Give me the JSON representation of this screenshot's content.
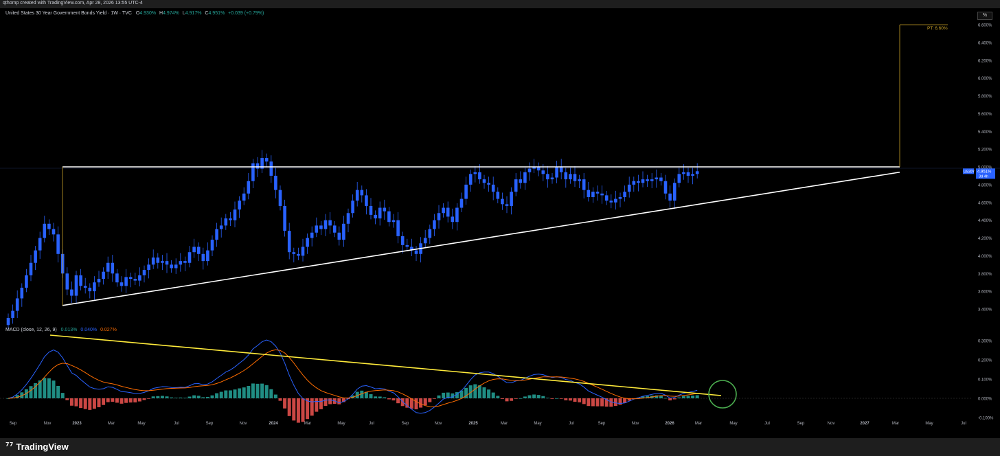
{
  "header": {
    "attribution": "qthomp created with TradingView.com, Apr 28, 2026 13:55 UTC-4"
  },
  "footer": {
    "brand": "TradingView",
    "logo_icon": "tradingview-logo-icon"
  },
  "scale_button": "%",
  "colors": {
    "bull": "#2962ff",
    "bear": "#2962ff",
    "price_line": "#2962ff",
    "trendline": "#ffffff",
    "target": "#c9a227",
    "macd": "#2962ff",
    "signal": "#ff6d00",
    "hist_pos": "#26a69a",
    "hist_neg": "#ef5350",
    "macd_trend": "#ffeb3b",
    "circle": "#4caf50"
  },
  "chart_data": [
    {
      "type": "candlestick",
      "legend": {
        "symbol": "United States 30 Year Government Bonds Yield · 1W · TVC",
        "o_label": "O",
        "o": "4.930%",
        "h_label": "H",
        "h": "4.974%",
        "l_label": "L",
        "l": "4.917%",
        "c_label": "C",
        "c": "4.951%",
        "chg": "+0.039 (+0.79%)"
      },
      "price_tag": {
        "ticker": "US30Y",
        "value": "4.951%",
        "countdown": "3d 4h"
      },
      "target_label": "PT: 6.60%",
      "y_ticks": [
        "6.600%",
        "6.400%",
        "6.200%",
        "6.000%",
        "5.800%",
        "5.600%",
        "5.400%",
        "5.200%",
        "5.000%",
        "4.800%",
        "4.600%",
        "4.400%",
        "4.200%",
        "4.000%",
        "3.800%",
        "3.600%",
        "3.400%"
      ],
      "x_ticks": [
        "Sep",
        "Nov",
        "2023",
        "Mar",
        "May",
        "Jul",
        "Sep",
        "Nov",
        "2024",
        "Mar",
        "May",
        "Jul",
        "Sep",
        "Nov",
        "2025",
        "Mar",
        "May",
        "Jul",
        "Sep",
        "Nov",
        "2026",
        "Mar",
        "May",
        "Jul",
        "Sep",
        "Nov",
        "2027",
        "Mar",
        "May",
        "Jul"
      ],
      "closes_weekly": [
        3.3,
        3.38,
        3.52,
        3.64,
        3.78,
        3.92,
        4.06,
        4.2,
        4.36,
        4.3,
        4.24,
        4.02,
        3.8,
        3.62,
        3.55,
        3.78,
        3.66,
        3.64,
        3.6,
        3.7,
        3.74,
        3.82,
        3.92,
        3.8,
        3.7,
        3.66,
        3.76,
        3.74,
        3.72,
        3.78,
        3.84,
        3.9,
        3.98,
        3.92,
        3.94,
        3.9,
        3.86,
        3.9,
        3.94,
        3.92,
        4.04,
        4.1,
        4.02,
        3.94,
        4.06,
        4.18,
        4.3,
        4.34,
        4.42,
        4.4,
        4.52,
        4.62,
        4.7,
        4.84,
        5.04,
        4.98,
        5.1,
        5.06,
        4.9,
        4.74,
        4.56,
        4.28,
        4.04,
        4.02,
        4.0,
        4.1,
        4.2,
        4.26,
        4.34,
        4.3,
        4.4,
        4.34,
        4.26,
        4.18,
        4.36,
        4.48,
        4.62,
        4.74,
        4.68,
        4.56,
        4.46,
        4.42,
        4.54,
        4.5,
        4.38,
        4.4,
        4.22,
        4.12,
        4.1,
        4.06,
        4.02,
        4.14,
        4.2,
        4.3,
        4.4,
        4.48,
        4.54,
        4.44,
        4.38,
        4.54,
        4.64,
        4.8,
        4.92,
        4.94,
        4.86,
        4.82,
        4.8,
        4.72,
        4.64,
        4.58,
        4.56,
        4.72,
        4.86,
        4.82,
        4.94,
        4.98,
        5.0,
        4.96,
        4.92,
        4.86,
        4.88,
        5.0,
        4.94,
        4.86,
        4.92,
        4.84,
        4.86,
        4.74,
        4.66,
        4.72,
        4.7,
        4.68,
        4.62,
        4.6,
        4.64,
        4.66,
        4.72,
        4.8,
        4.84,
        4.82,
        4.86,
        4.84,
        4.86,
        4.88,
        4.84,
        4.7,
        4.62,
        4.82,
        4.92,
        4.94,
        4.9,
        4.92,
        4.951
      ],
      "support_trendline": [
        [
          "2022-12-01",
          3.44
        ],
        [
          "2027-02-25",
          4.94
        ]
      ],
      "resistance_level": [
        [
          "2022-12-01",
          5.0
        ],
        [
          "2027-02-25",
          5.0
        ]
      ],
      "price_target": {
        "from": 5.0,
        "to": 6.6
      },
      "ylim": [
        3.3,
        6.7
      ]
    },
    {
      "type": "bar",
      "legend": {
        "name": "MACD (close, 12, 26, 9)",
        "hist": "0.013%",
        "macd": "0.040%",
        "signal": "0.027%"
      },
      "y_ticks": [
        "0.300%",
        "0.200%",
        "0.100%",
        "0.000%",
        "-0.100%"
      ],
      "ylim": [
        -0.12,
        0.34
      ]
    }
  ]
}
